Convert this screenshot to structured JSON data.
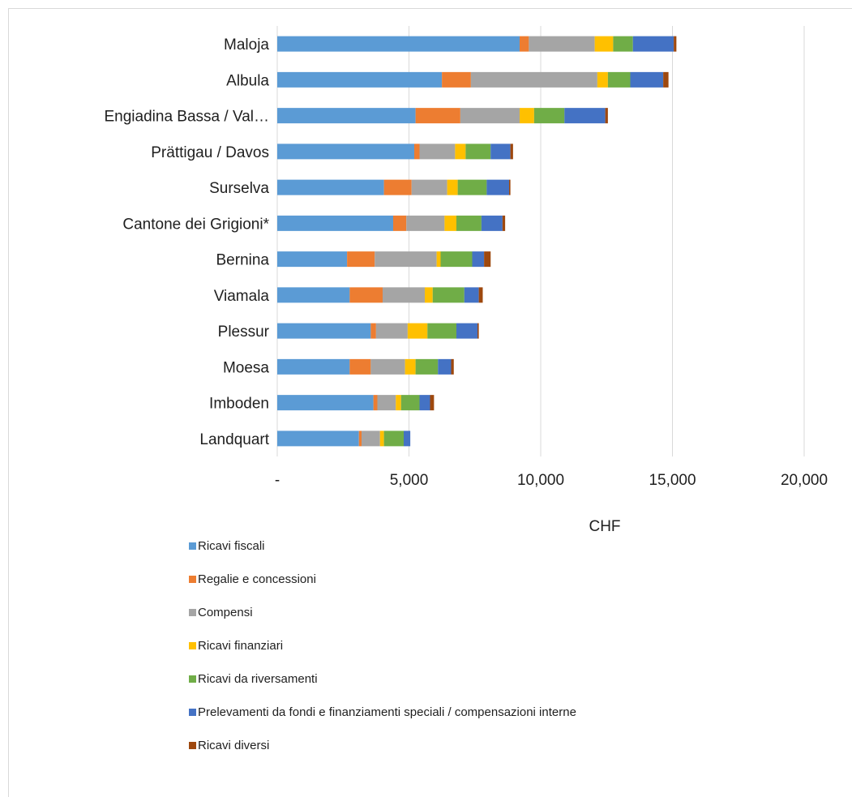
{
  "chart_data": {
    "type": "bar",
    "orientation": "horizontal",
    "stacked": true,
    "categories": [
      "Maloja",
      "Albula",
      "Engiadina Bassa / Val…",
      "Prättigau / Davos",
      "Surselva",
      "Cantone dei Grigioni*",
      "Bernina",
      "Viamala",
      "Plessur",
      "Moesa",
      "Imboden",
      "Landquart"
    ],
    "series": [
      {
        "name": "Ricavi fiscali",
        "color": "#5b9bd5",
        "values": [
          9200,
          6250,
          5250,
          5200,
          4050,
          4400,
          2650,
          2750,
          3550,
          2750,
          3650,
          3100
        ]
      },
      {
        "name": "Regalie e concessioni",
        "color": "#ed7d31",
        "values": [
          350,
          1100,
          1700,
          200,
          1050,
          500,
          1050,
          1250,
          200,
          800,
          150,
          100
        ]
      },
      {
        "name": "Compensi",
        "color": "#a5a5a5",
        "values": [
          2500,
          4800,
          2250,
          1350,
          1350,
          1450,
          2350,
          1600,
          1200,
          1300,
          700,
          700
        ]
      },
      {
        "name": "Ricavi finanziari",
        "color": "#ffc000",
        "values": [
          700,
          400,
          550,
          400,
          400,
          450,
          150,
          300,
          750,
          400,
          200,
          150
        ]
      },
      {
        "name": "Ricavi da riversamenti",
        "color": "#70ad47",
        "values": [
          750,
          850,
          1150,
          950,
          1100,
          950,
          1200,
          1200,
          1100,
          850,
          700,
          750
        ]
      },
      {
        "name": "Prelevamenti da fondi e finanziamenti speciali / compensazioni interne",
        "color": "#4472c4",
        "values": [
          1550,
          1250,
          1550,
          750,
          850,
          800,
          450,
          550,
          800,
          500,
          400,
          250
        ]
      },
      {
        "name": "Ricavi diversi",
        "color": "#9e480e",
        "values": [
          100,
          200,
          100,
          100,
          50,
          100,
          250,
          150,
          50,
          100,
          150,
          0
        ]
      }
    ],
    "x_ticks": [
      "-",
      "5,000",
      "10,000",
      "15,000",
      "20,000"
    ],
    "xlabel": "CHF",
    "xlim": [
      0,
      20000
    ],
    "grid": "vertical",
    "legend_position": "bottom"
  }
}
